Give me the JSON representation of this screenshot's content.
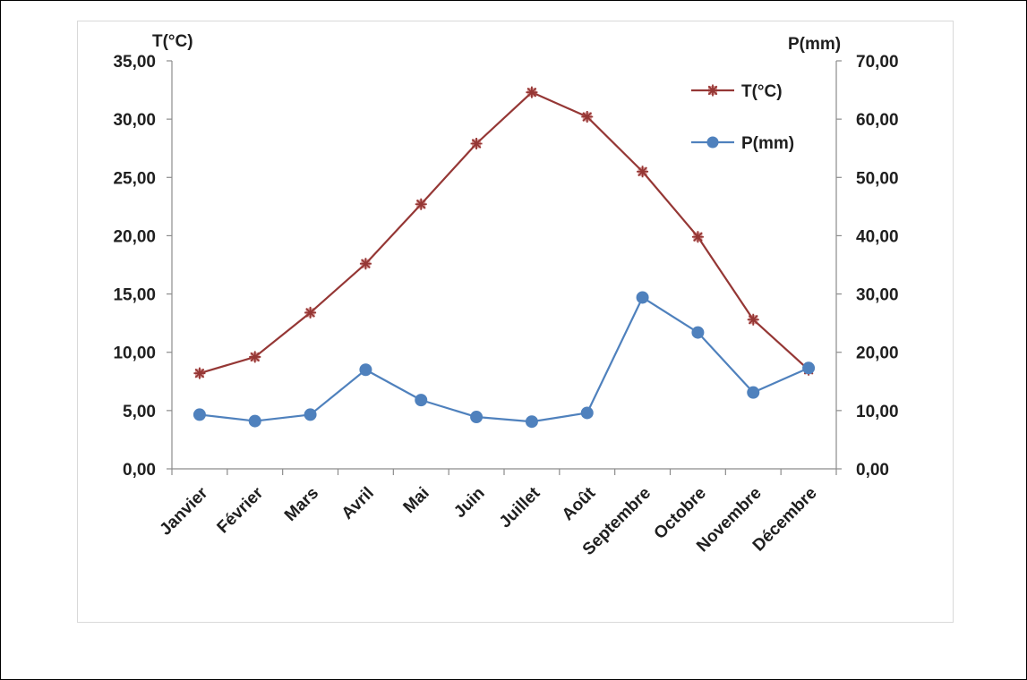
{
  "chart_data": {
    "type": "line",
    "categories": [
      "Janvier",
      "Février",
      "Mars",
      "Avril",
      "Mai",
      "Juin",
      "Juillet",
      "Août",
      "Septembre",
      "Octobre",
      "Novembre",
      "Décembre"
    ],
    "series": [
      {
        "name": "T(°C)",
        "axis": "left",
        "color": "#953735",
        "marker": "star",
        "values": [
          8.2,
          9.6,
          13.4,
          17.6,
          22.7,
          27.9,
          32.3,
          30.2,
          25.5,
          19.9,
          12.8,
          8.5
        ]
      },
      {
        "name": "P(mm)",
        "axis": "right",
        "color": "#4f81bd",
        "marker": "circle",
        "values": [
          9.3,
          8.2,
          9.3,
          17.0,
          11.8,
          8.9,
          8.1,
          9.6,
          29.4,
          23.4,
          13.1,
          17.3
        ]
      }
    ],
    "y_left": {
      "label": "T(°C)",
      "min": 0,
      "max": 35,
      "step": 5,
      "tick_labels": [
        "0,00",
        "5,00",
        "10,00",
        "15,00",
        "20,00",
        "25,00",
        "30,00",
        "35,00"
      ]
    },
    "y_right": {
      "label": "P(mm)",
      "min": 0,
      "max": 70,
      "step": 10,
      "tick_labels": [
        "0,00",
        "10,00",
        "20,00",
        "30,00",
        "40,00",
        "50,00",
        "60,00",
        "70,00"
      ]
    },
    "grid": false,
    "legend_position": "top-right"
  }
}
